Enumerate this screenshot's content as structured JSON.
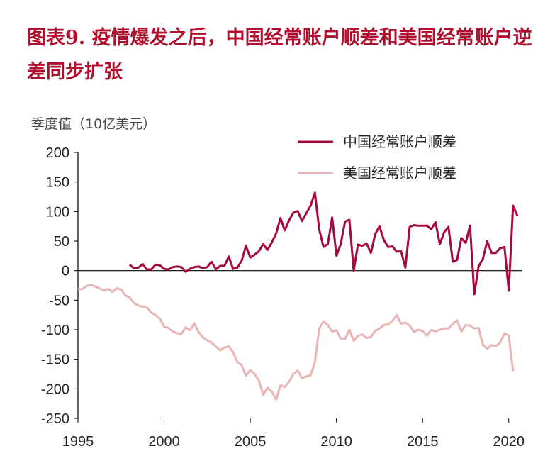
{
  "title": "图表9. 疫情爆发之后，中国经常账户顺差和美国经常账户逆差同步扩张",
  "chart_data": {
    "type": "line",
    "ylabel": "季度值（10亿美元）",
    "xlabel": "",
    "xlim": [
      1995,
      2020.75
    ],
    "ylim": [
      -250,
      200
    ],
    "x_ticks": [
      1995,
      2000,
      2005,
      2010,
      2015,
      2020
    ],
    "y_ticks": [
      200,
      150,
      100,
      50,
      0,
      -50,
      -100,
      -150,
      -200,
      -250
    ],
    "legend_position": "top-right",
    "grid": false,
    "series": [
      {
        "name": "中国经常账户顺差",
        "color": "#a6093d",
        "points": [
          [
            1998.0,
            10
          ],
          [
            1998.25,
            4
          ],
          [
            1998.5,
            5
          ],
          [
            1998.75,
            11
          ],
          [
            1999.0,
            2
          ],
          [
            1999.25,
            2
          ],
          [
            1999.5,
            10
          ],
          [
            1999.75,
            9
          ],
          [
            2000.0,
            3
          ],
          [
            2000.25,
            2
          ],
          [
            2000.5,
            6
          ],
          [
            2000.75,
            7
          ],
          [
            2001.0,
            6
          ],
          [
            2001.25,
            -2
          ],
          [
            2001.5,
            3
          ],
          [
            2001.75,
            6
          ],
          [
            2002.0,
            7
          ],
          [
            2002.25,
            4
          ],
          [
            2002.5,
            6
          ],
          [
            2002.75,
            15
          ],
          [
            2003.0,
            2
          ],
          [
            2003.25,
            8
          ],
          [
            2003.5,
            8
          ],
          [
            2003.75,
            24
          ],
          [
            2004.0,
            3
          ],
          [
            2004.25,
            5
          ],
          [
            2004.5,
            17
          ],
          [
            2004.75,
            42
          ],
          [
            2005.0,
            22
          ],
          [
            2005.25,
            27
          ],
          [
            2005.5,
            33
          ],
          [
            2005.75,
            45
          ],
          [
            2006.0,
            35
          ],
          [
            2006.25,
            48
          ],
          [
            2006.5,
            63
          ],
          [
            2006.75,
            89
          ],
          [
            2007.0,
            68
          ],
          [
            2007.25,
            85
          ],
          [
            2007.5,
            98
          ],
          [
            2007.75,
            101
          ],
          [
            2008.0,
            84
          ],
          [
            2008.25,
            97
          ],
          [
            2008.5,
            110
          ],
          [
            2008.75,
            132
          ],
          [
            2009.0,
            70
          ],
          [
            2009.25,
            40
          ],
          [
            2009.5,
            45
          ],
          [
            2009.75,
            90
          ],
          [
            2010.0,
            25
          ],
          [
            2010.25,
            45
          ],
          [
            2010.5,
            83
          ],
          [
            2010.75,
            86
          ],
          [
            2011.0,
            0
          ],
          [
            2011.25,
            44
          ],
          [
            2011.5,
            42
          ],
          [
            2011.75,
            46
          ],
          [
            2012.0,
            30
          ],
          [
            2012.25,
            62
          ],
          [
            2012.5,
            75
          ],
          [
            2012.75,
            52
          ],
          [
            2013.0,
            40
          ],
          [
            2013.25,
            41
          ],
          [
            2013.5,
            32
          ],
          [
            2013.75,
            33
          ],
          [
            2014.0,
            5
          ],
          [
            2014.25,
            74
          ],
          [
            2014.5,
            77
          ],
          [
            2014.75,
            76
          ],
          [
            2015.0,
            76
          ],
          [
            2015.25,
            76
          ],
          [
            2015.5,
            70
          ],
          [
            2015.75,
            82
          ],
          [
            2016.0,
            45
          ],
          [
            2016.25,
            65
          ],
          [
            2016.5,
            74
          ],
          [
            2016.75,
            15
          ],
          [
            2017.0,
            18
          ],
          [
            2017.25,
            55
          ],
          [
            2017.5,
            47
          ],
          [
            2017.75,
            76
          ],
          [
            2018.0,
            -40
          ],
          [
            2018.25,
            7
          ],
          [
            2018.5,
            20
          ],
          [
            2018.75,
            50
          ],
          [
            2019.0,
            30
          ],
          [
            2019.25,
            30
          ],
          [
            2019.5,
            38
          ],
          [
            2019.75,
            40
          ],
          [
            2020.0,
            -34
          ],
          [
            2020.25,
            110
          ],
          [
            2020.5,
            93
          ]
        ]
      },
      {
        "name": "美国经常账户顺差",
        "color": "#e8b4b4",
        "points": [
          [
            1995.0,
            -32
          ],
          [
            1995.25,
            -31
          ],
          [
            1995.5,
            -26
          ],
          [
            1995.75,
            -24
          ],
          [
            1996.0,
            -27
          ],
          [
            1996.25,
            -30
          ],
          [
            1996.5,
            -34
          ],
          [
            1996.75,
            -31
          ],
          [
            1997.0,
            -36
          ],
          [
            1997.25,
            -30
          ],
          [
            1997.5,
            -32
          ],
          [
            1997.75,
            -42
          ],
          [
            1998.0,
            -45
          ],
          [
            1998.25,
            -55
          ],
          [
            1998.5,
            -59
          ],
          [
            1998.75,
            -61
          ],
          [
            1999.0,
            -62
          ],
          [
            1999.25,
            -71
          ],
          [
            1999.5,
            -75
          ],
          [
            1999.75,
            -81
          ],
          [
            2000.0,
            -95
          ],
          [
            2000.25,
            -97
          ],
          [
            2000.5,
            -103
          ],
          [
            2000.75,
            -106
          ],
          [
            2001.0,
            -107
          ],
          [
            2001.25,
            -96
          ],
          [
            2001.5,
            -101
          ],
          [
            2001.75,
            -89
          ],
          [
            2002.0,
            -104
          ],
          [
            2002.25,
            -113
          ],
          [
            2002.5,
            -118
          ],
          [
            2002.75,
            -122
          ],
          [
            2003.0,
            -128
          ],
          [
            2003.25,
            -135
          ],
          [
            2003.5,
            -130
          ],
          [
            2003.75,
            -128
          ],
          [
            2004.0,
            -138
          ],
          [
            2004.25,
            -155
          ],
          [
            2004.5,
            -160
          ],
          [
            2004.75,
            -178
          ],
          [
            2005.0,
            -168
          ],
          [
            2005.25,
            -175
          ],
          [
            2005.5,
            -186
          ],
          [
            2005.75,
            -210
          ],
          [
            2006.0,
            -198
          ],
          [
            2006.25,
            -205
          ],
          [
            2006.5,
            -218
          ],
          [
            2006.75,
            -194
          ],
          [
            2007.0,
            -197
          ],
          [
            2007.25,
            -188
          ],
          [
            2007.5,
            -175
          ],
          [
            2007.75,
            -169
          ],
          [
            2008.0,
            -182
          ],
          [
            2008.25,
            -179
          ],
          [
            2008.5,
            -177
          ],
          [
            2008.75,
            -155
          ],
          [
            2009.0,
            -98
          ],
          [
            2009.25,
            -86
          ],
          [
            2009.5,
            -92
          ],
          [
            2009.75,
            -103
          ],
          [
            2010.0,
            -101
          ],
          [
            2010.25,
            -115
          ],
          [
            2010.5,
            -116
          ],
          [
            2010.75,
            -100
          ],
          [
            2011.0,
            -119
          ],
          [
            2011.25,
            -110
          ],
          [
            2011.5,
            -108
          ],
          [
            2011.75,
            -114
          ],
          [
            2012.0,
            -112
          ],
          [
            2012.25,
            -102
          ],
          [
            2012.5,
            -98
          ],
          [
            2012.75,
            -92
          ],
          [
            2013.0,
            -91
          ],
          [
            2013.25,
            -85
          ],
          [
            2013.5,
            -75
          ],
          [
            2013.75,
            -90
          ],
          [
            2014.0,
            -88
          ],
          [
            2014.25,
            -93
          ],
          [
            2014.5,
            -104
          ],
          [
            2014.75,
            -100
          ],
          [
            2015.0,
            -102
          ],
          [
            2015.25,
            -110
          ],
          [
            2015.5,
            -100
          ],
          [
            2015.75,
            -103
          ],
          [
            2016.0,
            -100
          ],
          [
            2016.25,
            -98
          ],
          [
            2016.5,
            -98
          ],
          [
            2016.75,
            -90
          ],
          [
            2017.0,
            -84
          ],
          [
            2017.25,
            -103
          ],
          [
            2017.5,
            -92
          ],
          [
            2017.75,
            -93
          ],
          [
            2018.0,
            -98
          ],
          [
            2018.25,
            -97
          ],
          [
            2018.5,
            -126
          ],
          [
            2018.75,
            -132
          ],
          [
            2019.0,
            -126
          ],
          [
            2019.25,
            -128
          ],
          [
            2019.5,
            -122
          ],
          [
            2019.75,
            -106
          ],
          [
            2020.0,
            -110
          ],
          [
            2020.25,
            -170
          ]
        ]
      }
    ]
  }
}
